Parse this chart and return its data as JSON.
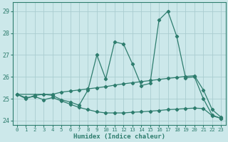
{
  "xlabel": "Humidex (Indice chaleur)",
  "ylabel": "",
  "xlim": [
    -0.5,
    23.5
  ],
  "ylim": [
    23.8,
    29.4
  ],
  "yticks": [
    24,
    25,
    26,
    27,
    28,
    29
  ],
  "xticks": [
    0,
    1,
    2,
    3,
    4,
    5,
    6,
    7,
    8,
    9,
    10,
    11,
    12,
    13,
    14,
    15,
    16,
    17,
    18,
    19,
    20,
    21,
    22,
    23
  ],
  "bg_color": "#cce8ea",
  "grid_color": "#aacdd0",
  "line_color": "#2e7d6e",
  "series1_x": [
    0,
    1,
    2,
    3,
    4,
    5,
    6,
    7,
    8,
    9,
    10,
    11,
    12,
    13,
    14,
    15,
    16,
    17,
    18,
    19,
    20,
    21,
    22,
    23
  ],
  "series1_y": [
    25.2,
    25.0,
    25.15,
    25.2,
    25.15,
    24.95,
    24.85,
    24.7,
    25.4,
    27.0,
    25.9,
    27.6,
    27.5,
    26.6,
    25.6,
    25.7,
    28.6,
    29.0,
    27.85,
    25.95,
    26.0,
    25.0,
    24.25,
    24.1
  ],
  "series2_x": [
    0,
    4,
    5,
    6,
    7,
    8,
    9,
    10,
    11,
    12,
    13,
    14,
    15,
    16,
    17,
    18,
    19,
    20,
    21,
    22,
    23
  ],
  "series2_y": [
    25.2,
    25.2,
    25.3,
    25.35,
    25.4,
    25.45,
    25.5,
    25.55,
    25.62,
    25.68,
    25.73,
    25.78,
    25.83,
    25.88,
    25.93,
    25.97,
    26.02,
    26.05,
    25.4,
    24.5,
    24.15
  ],
  "series3_x": [
    0,
    1,
    2,
    3,
    4,
    5,
    6,
    7,
    8,
    9,
    10,
    11,
    12,
    13,
    14,
    15,
    16,
    17,
    18,
    19,
    20,
    21,
    22,
    23
  ],
  "series3_y": [
    25.2,
    25.05,
    25.1,
    24.95,
    25.05,
    24.9,
    24.75,
    24.6,
    24.5,
    24.4,
    24.35,
    24.35,
    24.35,
    24.38,
    24.4,
    24.43,
    24.46,
    24.5,
    24.52,
    24.55,
    24.57,
    24.55,
    24.22,
    24.1
  ]
}
